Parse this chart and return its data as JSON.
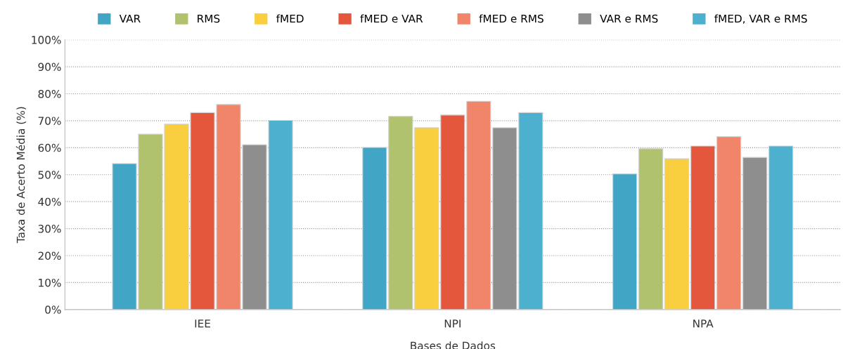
{
  "chart_data": {
    "type": "bar",
    "xlabel": "Bases de Dados",
    "ylabel": "Taxa de Acerto Média (%)",
    "categories": [
      "IEE",
      "NPI",
      "NPA"
    ],
    "series": [
      {
        "name": "VAR",
        "color": "#41a6c5",
        "values": [
          54.1,
          60.1,
          50.3
        ]
      },
      {
        "name": "RMS",
        "color": "#b0c26e",
        "values": [
          65.0,
          71.6,
          59.6
        ]
      },
      {
        "name": "fMED",
        "color": "#f9cf40",
        "values": [
          68.7,
          67.4,
          55.9
        ]
      },
      {
        "name": "fMED e VAR",
        "color": "#e5573d",
        "values": [
          73.0,
          72.1,
          60.6
        ]
      },
      {
        "name": "fMED e RMS",
        "color": "#f08569",
        "values": [
          76.0,
          77.2,
          64.1
        ]
      },
      {
        "name": "VAR e RMS",
        "color": "#8e8e8e",
        "values": [
          61.1,
          67.4,
          56.4
        ]
      },
      {
        "name": "fMED, VAR e RMS",
        "color": "#4eb0cf",
        "values": [
          70.1,
          73.0,
          60.6
        ]
      }
    ],
    "ylim": [
      0,
      100
    ],
    "yticks": [
      {
        "value": 0,
        "label": "0%"
      },
      {
        "value": 10,
        "label": "10%"
      },
      {
        "value": 20,
        "label": "20%"
      },
      {
        "value": 30,
        "label": "30%"
      },
      {
        "value": 40,
        "label": "40%"
      },
      {
        "value": 50,
        "label": "50%"
      },
      {
        "value": 60,
        "label": "60%"
      },
      {
        "value": 70,
        "label": "70%"
      },
      {
        "value": 80,
        "label": "80%"
      },
      {
        "value": 90,
        "label": "90%"
      },
      {
        "value": 100,
        "label": "100%"
      }
    ],
    "grid": "y",
    "legend": "top"
  }
}
